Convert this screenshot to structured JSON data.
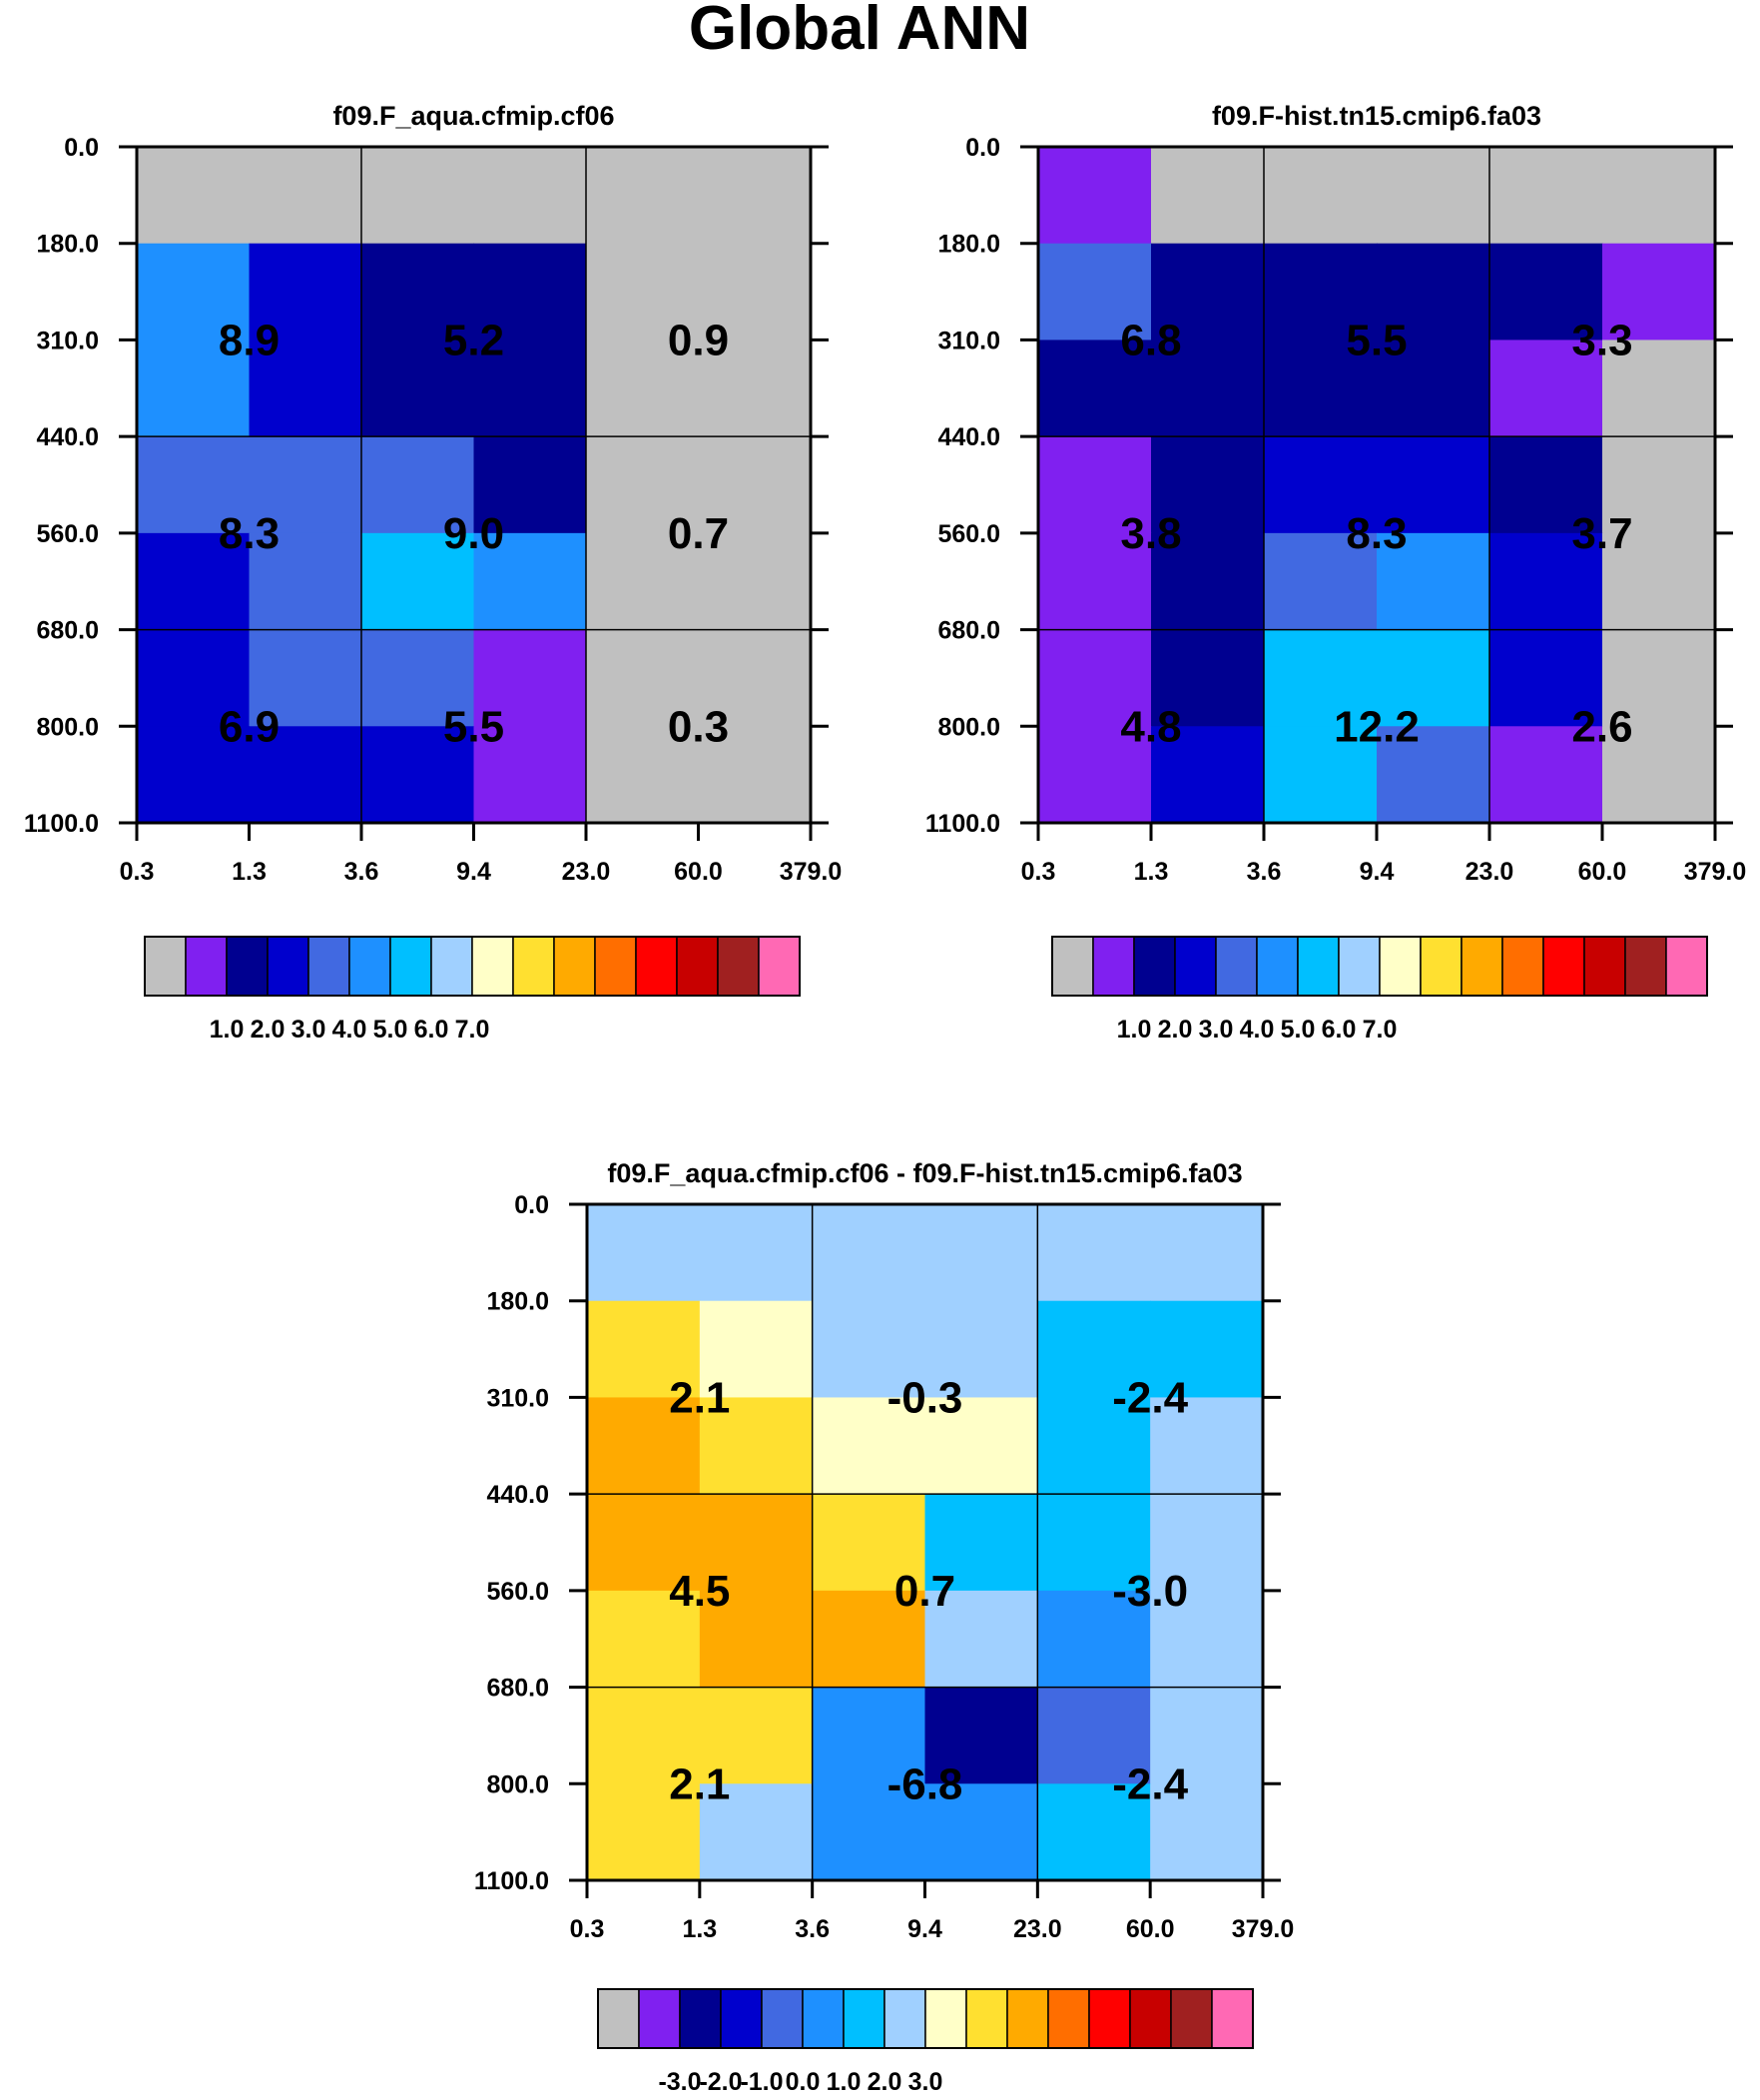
{
  "figure_title": "Global ANN",
  "colors": {
    "palette": [
      "#c0c0c0",
      "#8020f0",
      "#000090",
      "#0000cd",
      "#4169e1",
      "#1e90ff",
      "#00bfff",
      "#a0d0ff",
      "#ffffc8",
      "#ffe030",
      "#ffaa00",
      "#ff6e00",
      "#ff0000",
      "#c80000",
      "#a02020",
      "#ff69b4"
    ]
  },
  "chart_data": [
    {
      "type": "heatmap",
      "title": "f09.F_aqua.cfmip.cf06",
      "xticks": [
        "0.3",
        "1.3",
        "3.6",
        "9.4",
        "23.0",
        "60.0",
        "379.0"
      ],
      "yticks": [
        "0.0",
        "180.0",
        "310.0",
        "440.0",
        "560.0",
        "680.0",
        "800.0",
        "1100.0"
      ],
      "cell_colors": [
        [
          0,
          0,
          0,
          0,
          0,
          0
        ],
        [
          5,
          3,
          2,
          2,
          0,
          0
        ],
        [
          5,
          3,
          2,
          2,
          0,
          0
        ],
        [
          4,
          4,
          4,
          2,
          0,
          0
        ],
        [
          3,
          4,
          6,
          5,
          0,
          0
        ],
        [
          3,
          4,
          4,
          1,
          0,
          0
        ],
        [
          3,
          3,
          3,
          1,
          0,
          0
        ]
      ],
      "cell_values": [
        [
          "8.9",
          "5.2",
          "0.9"
        ],
        [
          "8.3",
          "9.0",
          "0.7"
        ],
        [
          "6.9",
          "5.5",
          "0.3"
        ]
      ],
      "colorbar_labels": [
        "1.0",
        "2.0",
        "3.0",
        "4.0",
        "5.0",
        "6.0",
        "7.0"
      ]
    },
    {
      "type": "heatmap",
      "title": "f09.F-hist.tn15.cmip6.fa03",
      "xticks": [
        "0.3",
        "1.3",
        "3.6",
        "9.4",
        "23.0",
        "60.0",
        "379.0"
      ],
      "yticks": [
        "0.0",
        "180.0",
        "310.0",
        "440.0",
        "560.0",
        "680.0",
        "800.0",
        "1100.0"
      ],
      "cell_colors": [
        [
          1,
          0,
          0,
          0,
          0,
          0
        ],
        [
          4,
          2,
          2,
          2,
          2,
          1
        ],
        [
          2,
          2,
          2,
          2,
          1,
          0
        ],
        [
          1,
          2,
          3,
          3,
          2,
          0
        ],
        [
          1,
          2,
          4,
          5,
          3,
          0
        ],
        [
          1,
          2,
          6,
          6,
          3,
          0
        ],
        [
          1,
          3,
          6,
          4,
          1,
          0
        ]
      ],
      "cell_values": [
        [
          "6.8",
          "5.5",
          "3.3"
        ],
        [
          "3.8",
          "8.3",
          "3.7"
        ],
        [
          "4.8",
          "12.2",
          "2.6"
        ]
      ],
      "colorbar_labels": [
        "1.0",
        "2.0",
        "3.0",
        "4.0",
        "5.0",
        "6.0",
        "7.0"
      ]
    },
    {
      "type": "heatmap",
      "title": "f09.F_aqua.cfmip.cf06 - f09.F-hist.tn15.cmip6.fa03",
      "xticks": [
        "0.3",
        "1.3",
        "3.6",
        "9.4",
        "23.0",
        "60.0",
        "379.0"
      ],
      "yticks": [
        "0.0",
        "180.0",
        "310.0",
        "440.0",
        "560.0",
        "680.0",
        "800.0",
        "1100.0"
      ],
      "cell_colors": [
        [
          7,
          7,
          7,
          7,
          7,
          7
        ],
        [
          9,
          8,
          7,
          7,
          6,
          6
        ],
        [
          10,
          9,
          8,
          8,
          6,
          7
        ],
        [
          10,
          10,
          9,
          6,
          6,
          7
        ],
        [
          9,
          10,
          10,
          7,
          5,
          7
        ],
        [
          9,
          9,
          5,
          2,
          4,
          7
        ],
        [
          9,
          7,
          5,
          5,
          6,
          7
        ]
      ],
      "cell_values": [
        [
          "2.1",
          "-0.3",
          "-2.4"
        ],
        [
          "4.5",
          "0.7",
          "-3.0"
        ],
        [
          "2.1",
          "-6.8",
          "-2.4"
        ]
      ],
      "colorbar_labels": [
        "-3.0",
        "-2.0",
        "-1.0",
        "0.0",
        "1.0",
        "2.0",
        "3.0"
      ]
    }
  ]
}
